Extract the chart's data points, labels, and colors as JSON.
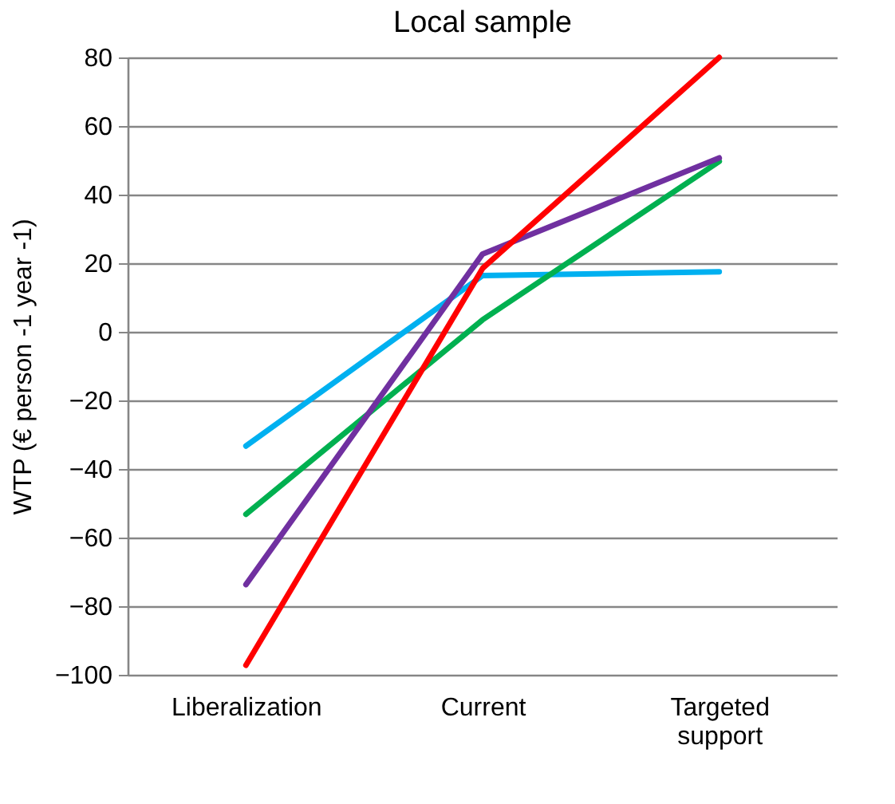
{
  "chart_data": {
    "type": "line",
    "title": "Local sample",
    "ylabel": "WTP (€ person -1 year -1)",
    "categories": [
      "Liberalization",
      "Current",
      "Targeted support"
    ],
    "series": [
      {
        "color": "#00b0f0",
        "values": [
          -33.3,
          16.4,
          17.5
        ]
      },
      {
        "color": "#00b050",
        "values": [
          -53.2,
          3.5,
          49.7
        ]
      },
      {
        "color": "#7030a0",
        "values": [
          -73.7,
          22.7,
          50.7
        ]
      },
      {
        "color": "#ff0000",
        "values": [
          -97.2,
          18.5,
          80
        ]
      }
    ],
    "ylim": [
      -100,
      80
    ],
    "yticks": [
      -100,
      -80,
      -60,
      -40,
      -20,
      0,
      20,
      40,
      60,
      80
    ],
    "grid": "y",
    "legend": false,
    "marker": "none",
    "line_style": "solid"
  }
}
